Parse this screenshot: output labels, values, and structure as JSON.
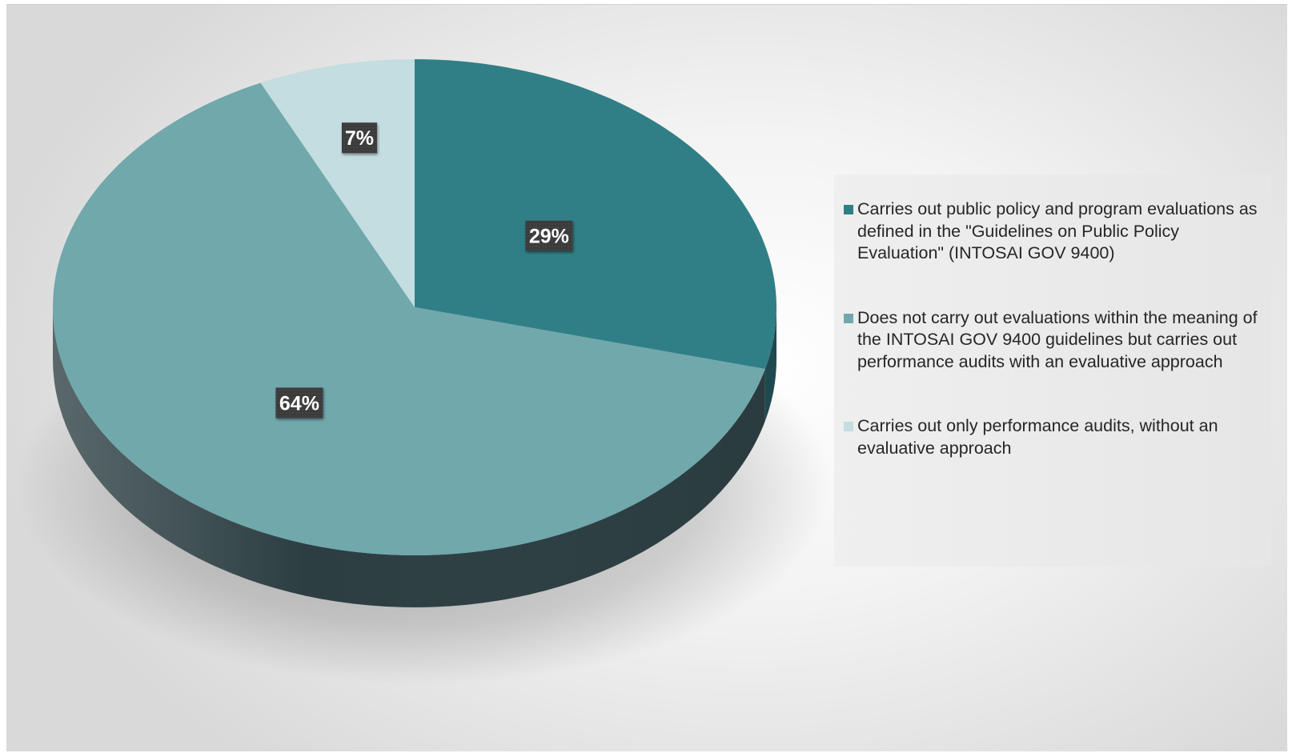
{
  "chart_data": {
    "type": "pie",
    "style": "3d",
    "title": "",
    "categories": [
      "Carries out public policy and program evaluations as defined in the \"Guidelines on Public Policy Evaluation\" (INTOSAI GOV 9400)",
      "Does not carry out evaluations within the meaning of the INTOSAI GOV 9400 guidelines but carries out performance audits with an evaluative approach",
      "Carries out only performance audits, without an evaluative approach"
    ],
    "values": [
      29,
      64,
      7
    ],
    "data_labels": [
      "29%",
      "64%",
      "7%"
    ],
    "colors": [
      "#307f86",
      "#70a8ac",
      "#c3dde0"
    ],
    "side_colors": [
      "#1f4e53",
      "#2c3e42",
      "#7f9ea1"
    ],
    "legend_position": "right",
    "grid": false
  }
}
